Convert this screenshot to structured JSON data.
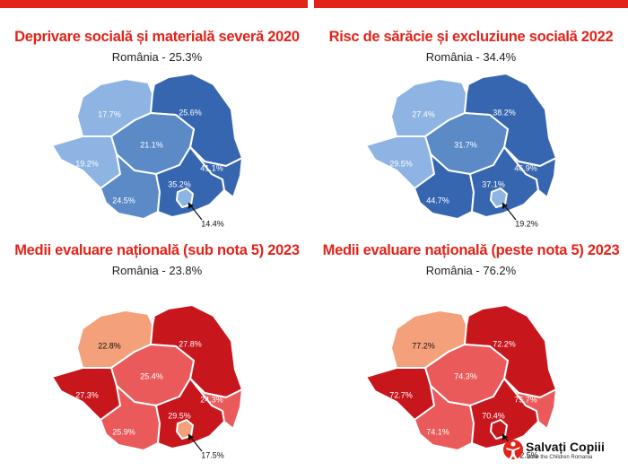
{
  "panels": [
    {
      "title": "Deprivare socială și materială severă 2020",
      "subtitle": "România - 25.3%",
      "colors": {
        "nw": "#8db4e2",
        "ne": "#3766b0",
        "c": "#5b8ac7",
        "w": "#8db4e2",
        "sw": "#5b8ac7",
        "s": "#3766b0",
        "se": "#3766b0",
        "b": "#8db4e2"
      },
      "values": {
        "nw": "17.7%",
        "ne": "25.6%",
        "c": "21.1%",
        "w": "19.2%",
        "sw": "24.5%",
        "s": "35.2%",
        "se": "41.1%",
        "b": "14.4%"
      }
    },
    {
      "title": "Risc de sărăcie și excluziune socială 2022",
      "subtitle": "România - 34.4%",
      "colors": {
        "nw": "#8db4e2",
        "ne": "#3766b0",
        "c": "#5b8ac7",
        "w": "#8db4e2",
        "sw": "#3766b0",
        "s": "#3766b0",
        "se": "#3766b0",
        "b": "#8db4e2"
      },
      "values": {
        "nw": "27.4%",
        "ne": "38.2%",
        "c": "31.7%",
        "w": "29.5%",
        "sw": "44.7%",
        "s": "37.1%",
        "se": "46.9%",
        "b": "19.2%"
      }
    },
    {
      "title": "Medii evaluare națională (sub nota 5) 2023",
      "subtitle": "România - 23.8%",
      "colors": {
        "nw": "#f4a07a",
        "ne": "#c8161d",
        "c": "#ea5a5a",
        "w": "#c8161d",
        "sw": "#ea5a5a",
        "s": "#c8161d",
        "se": "#ea5a5a",
        "b": "#f4a07a"
      },
      "values": {
        "nw": "22.8%",
        "ne": "27.8%",
        "c": "25.4%",
        "w": "27.3%",
        "sw": "25.9%",
        "s": "29.5%",
        "se": "24.3%",
        "b": "17.5%"
      }
    },
    {
      "title": "Medii evaluare națională (peste nota 5) 2023",
      "subtitle": "România - 76.2%",
      "colors": {
        "nw": "#f4a07a",
        "ne": "#c8161d",
        "c": "#ea5a5a",
        "w": "#c8161d",
        "sw": "#ea5a5a",
        "s": "#c8161d",
        "se": "#ea5a5a",
        "b": "#c8161d"
      },
      "values": {
        "nw": "77.2%",
        "ne": "72.2%",
        "c": "74.3%",
        "w": "72.7%",
        "sw": "74.1%",
        "s": "70.4%",
        "se": "75.7%",
        "b": "82.5%"
      }
    }
  ],
  "logo": {
    "name": "Salvați Copiii",
    "tagline": "Save the Children Romania",
    "icon": "child-figure-icon",
    "color": "#e2231a"
  }
}
